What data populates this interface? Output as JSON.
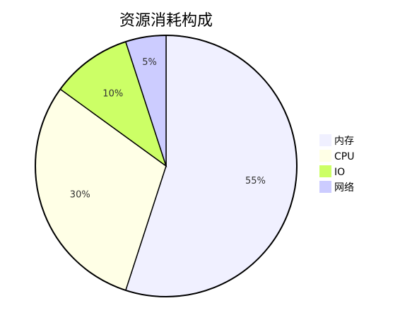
{
  "chart_data": {
    "type": "pie",
    "title": "资源消耗构成",
    "slices": [
      {
        "label": "内存",
        "value": 55,
        "display": "55%",
        "color": "#f0f0ff"
      },
      {
        "label": "CPU",
        "value": 30,
        "display": "30%",
        "color": "#ffffe6"
      },
      {
        "label": "IO",
        "value": 10,
        "display": "10%",
        "color": "#ccff66"
      },
      {
        "label": "网络",
        "value": 5,
        "display": "5%",
        "color": "#ccccff"
      }
    ],
    "start_angle": "top",
    "direction": "clockwise",
    "legend_position": "right"
  }
}
